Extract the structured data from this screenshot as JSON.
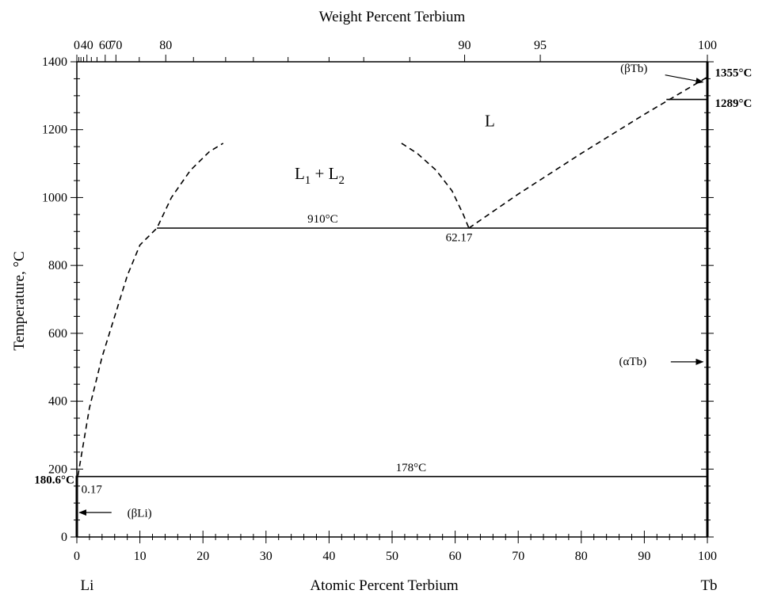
{
  "chart_data": {
    "type": "line",
    "title": "",
    "xlabel": "Atomic Percent Terbium",
    "x2label": "Weight Percent Terbium",
    "ylabel": "Temperature, °C",
    "xlim": [
      0,
      100
    ],
    "ylim": [
      0,
      1400
    ],
    "grid": false,
    "x_ticks": [
      "0",
      "10",
      "20",
      "30",
      "40",
      "50",
      "60",
      "70",
      "80",
      "90",
      "100"
    ],
    "y_ticks": [
      "0",
      "200",
      "400",
      "600",
      "800",
      "1000",
      "1200",
      "1400"
    ],
    "wt_ticks": [
      {
        "at": 0,
        "label": "0"
      },
      {
        "at": 0.31,
        "label": ""
      },
      {
        "at": 0.65,
        "label": ""
      },
      {
        "at": 1.07,
        "label": ""
      },
      {
        "at": 1.6,
        "label": "40"
      },
      {
        "at": 2.3,
        "label": ""
      },
      {
        "at": 3.2,
        "label": ""
      },
      {
        "at": 4.5,
        "label": "60"
      },
      {
        "at": 6.2,
        "label": "70"
      },
      {
        "at": 9.9,
        "label": ""
      },
      {
        "at": 14.1,
        "label": "80"
      },
      {
        "at": 18.5,
        "label": ""
      },
      {
        "at": 23.6,
        "label": ""
      },
      {
        "at": 28.0,
        "label": ""
      },
      {
        "at": 33.5,
        "label": ""
      },
      {
        "at": 40.0,
        "label": ""
      },
      {
        "at": 45.5,
        "label": ""
      },
      {
        "at": 52.8,
        "label": ""
      },
      {
        "at": 61.5,
        "label": "90"
      },
      {
        "at": 73.5,
        "label": "95"
      },
      {
        "at": 100,
        "label": "100"
      }
    ],
    "left_end_label": "Li",
    "right_end_label": "Tb",
    "series": [
      {
        "style": "dashed",
        "x": [
          0.17,
          2,
          4,
          6,
          8,
          10,
          12.7,
          15,
          18,
          21,
          23.2
        ],
        "y": [
          180.6,
          380,
          530,
          650,
          770,
          860,
          910,
          1000,
          1080,
          1135,
          1160
        ]
      },
      {
        "style": "dashed",
        "x": [
          51.5,
          54,
          57,
          59.5,
          61.3,
          62.17
        ],
        "y": [
          1160,
          1130,
          1080,
          1020,
          950,
          910
        ]
      },
      {
        "style": "dashed",
        "x": [
          62.17,
          70,
          80,
          90,
          100
        ],
        "y": [
          910,
          1010,
          1130,
          1245,
          1355
        ]
      },
      {
        "style": "solid",
        "x": [
          12.7,
          100
        ],
        "y": [
          910,
          910
        ]
      },
      {
        "style": "solid",
        "x": [
          0,
          100
        ],
        "y": [
          178,
          178
        ]
      },
      {
        "style": "solid",
        "x": [
          93.5,
          100
        ],
        "y": [
          1289,
          1289
        ]
      }
    ],
    "annotations": [
      {
        "text": "910°C",
        "x": 39,
        "y": 926,
        "weight": "normal",
        "anchor": "middle"
      },
      {
        "text": "62.17",
        "x": 58.5,
        "y": 872,
        "weight": "normal",
        "anchor": "start"
      },
      {
        "text": "178°C",
        "x": 53,
        "y": 194,
        "weight": "normal",
        "anchor": "middle"
      },
      {
        "text": "0.17",
        "x": 0.7,
        "y": 130,
        "weight": "normal",
        "anchor": "start"
      },
      {
        "text": "180.6°C",
        "x": -0.4,
        "y": 158,
        "weight": "bold",
        "anchor": "end"
      },
      {
        "text": "1355°C",
        "x": 101.2,
        "y": 1357,
        "weight": "bold",
        "anchor": "start"
      },
      {
        "text": "1289°C",
        "x": 101.2,
        "y": 1267,
        "weight": "bold",
        "anchor": "start"
      }
    ],
    "phase_labels": [
      {
        "text": "L",
        "x": 65.5,
        "y": 1210
      },
      {
        "text": "L1 + L2",
        "x": 38.5,
        "y": 1055
      }
    ],
    "arrow_labels": [
      {
        "text": "(βTb)",
        "x": 86.2,
        "y": 1370,
        "x_end": 99.3,
        "y_end": 1340,
        "x_start": 93.3,
        "y_start": 1361
      },
      {
        "text": "(αTb)",
        "x": 86.0,
        "y": 506,
        "x_end": 99.3,
        "y_end": 516,
        "x_start": 94.2,
        "y_start": 516
      },
      {
        "text": "(βLi)",
        "x": 8.0,
        "y": 60,
        "x_end": 0.4,
        "y_end": 72,
        "x_start": 5.5,
        "y_start": 72
      }
    ]
  }
}
